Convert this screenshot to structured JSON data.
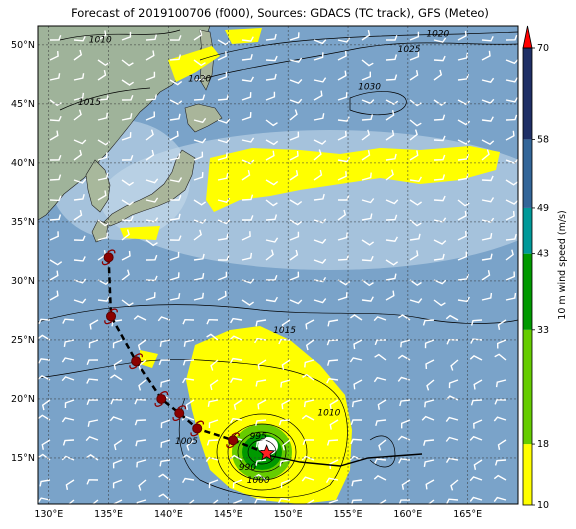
{
  "title": "Forecast of 2019100706 (f000), Sources: GDACS (TC track), GFS (Meteo)",
  "lat_ticks": [
    "50°N",
    "45°N",
    "40°N",
    "35°N",
    "30°N",
    "25°N",
    "20°N",
    "15°N"
  ],
  "lon_ticks": [
    "130°E",
    "135°E",
    "140°E",
    "145°E",
    "150°E",
    "155°E",
    "160°E",
    "165°E"
  ],
  "extent": {
    "lon": [
      129.1,
      169.2
    ],
    "lat": [
      11.1,
      51.6
    ]
  },
  "isobar_labels": [
    {
      "text": "1010",
      "lon": 134.3,
      "lat": 50.2
    },
    {
      "text": "1020",
      "lon": 162.5,
      "lat": 50.7
    },
    {
      "text": "1025",
      "lon": 160.1,
      "lat": 49.4
    },
    {
      "text": "1020",
      "lon": 142.6,
      "lat": 46.9
    },
    {
      "text": "1015",
      "lon": 133.4,
      "lat": 44.9
    },
    {
      "text": "1030",
      "lon": 156.8,
      "lat": 46.2
    },
    {
      "text": "1015",
      "lon": 149.7,
      "lat": 25.6
    },
    {
      "text": "1010",
      "lon": 153.4,
      "lat": 18.6
    },
    {
      "text": "1005",
      "lon": 141.5,
      "lat": 16.2
    },
    {
      "text": "995",
      "lon": 147.5,
      "lat": 16.6
    },
    {
      "text": "990",
      "lon": 146.6,
      "lat": 14.0
    },
    {
      "text": "1000",
      "lon": 147.5,
      "lat": 12.9
    }
  ],
  "track": [
    {
      "lon": 135.0,
      "lat": 32.0
    },
    {
      "lon": 135.2,
      "lat": 27.0
    },
    {
      "lon": 137.3,
      "lat": 23.2
    },
    {
      "lon": 139.4,
      "lat": 20.0
    },
    {
      "lon": 140.9,
      "lat": 18.8
    },
    {
      "lon": 142.4,
      "lat": 17.5
    },
    {
      "lon": 145.4,
      "lat": 16.5
    }
  ],
  "center": {
    "lon": 148.2,
    "lat": 15.4
  },
  "colorbar": {
    "label": "10 m wind speed (m/s)",
    "ticks": [
      "10",
      "18",
      "33",
      "43",
      "49",
      "58",
      "70"
    ],
    "ranges": [
      {
        "from": 10,
        "to": 18,
        "color": "#ffff00"
      },
      {
        "from": 18,
        "to": 33,
        "color": "#66cc00"
      },
      {
        "from": 33,
        "to": 43,
        "color": "#009900"
      },
      {
        "from": 43,
        "to": 49,
        "color": "#009999"
      },
      {
        "from": 49,
        "to": 58,
        "color": "#336699"
      },
      {
        "from": 58,
        "to": 70,
        "color": "#1f2f66"
      }
    ],
    "extend_color": "#ff0000"
  }
}
